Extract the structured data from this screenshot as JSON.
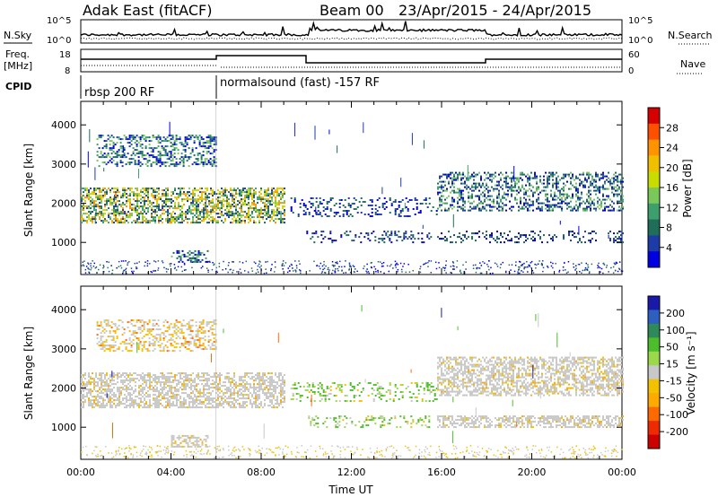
{
  "header": {
    "station": "Adak East (fitACF)",
    "beam": "Beam 00",
    "dates": "23/Apr/2015 - 24/Apr/2015"
  },
  "top_panels": {
    "nsky_label": "N.Sky",
    "nsearch_label": "N.Search",
    "nsky_ticks": [
      "10^5",
      "10^0"
    ],
    "nsearch_ticks": [
      "10^5",
      "10^0"
    ],
    "freq_label_1": "Freq.",
    "freq_label_2": "[MHz]",
    "freq_ticks": [
      "18",
      "8"
    ],
    "nave_label": "Nave",
    "nave_ticks": [
      "60",
      "0"
    ],
    "cpid_label": "CPID",
    "cpid_segments": [
      "rbsp 200 RF",
      "normalsound (fast) -157 RF"
    ]
  },
  "chart_data": [
    {
      "type": "heatmap",
      "name": "power",
      "ylabel": "Slant Range [km]",
      "xlabel": "Time UT",
      "xlim_hours": [
        0,
        24
      ],
      "ylim_km": [
        180,
        4600
      ],
      "y_ticks": [
        "1000",
        "2000",
        "3000",
        "4000"
      ],
      "x_ticks": [
        "00:00",
        "04:00",
        "08:00",
        "12:00",
        "16:00",
        "20:00",
        "00:00"
      ],
      "colorbar": {
        "label": "Power [dB]",
        "ticks": [
          "28",
          "24",
          "20",
          "16",
          "12",
          "8",
          "4"
        ],
        "colors": [
          "#d70000",
          "#ff5000",
          "#ff9400",
          "#f0c000",
          "#c8dc00",
          "#7ac85a",
          "#3d9e6e",
          "#1f6e5a",
          "#1e3ca8",
          "#0000e0"
        ]
      },
      "echo_regions": [
        {
          "t_start": 0.0,
          "t_end": 9.0,
          "range_start": 1500,
          "range_end": 2400,
          "level": "strong"
        },
        {
          "t_start": 0.7,
          "t_end": 6.0,
          "range_start": 2950,
          "range_end": 3750,
          "level": "moderate"
        },
        {
          "t_start": 4.0,
          "t_end": 5.6,
          "range_start": 500,
          "range_end": 800,
          "level": "moderate"
        },
        {
          "t_start": 9.3,
          "t_end": 15.8,
          "range_start": 1650,
          "range_end": 2150,
          "level": "weak"
        },
        {
          "t_start": 10.0,
          "t_end": 15.5,
          "range_start": 1000,
          "range_end": 1300,
          "level": "weak"
        },
        {
          "t_start": 15.8,
          "t_end": 24.0,
          "range_start": 1800,
          "range_end": 2800,
          "level": "moderate"
        },
        {
          "t_start": 15.8,
          "t_end": 24.0,
          "range_start": 1000,
          "range_end": 1300,
          "level": "weak"
        }
      ]
    },
    {
      "type": "heatmap",
      "name": "velocity",
      "ylabel": "Slant Range [km]",
      "xlabel": "Time UT",
      "xlim_hours": [
        0,
        24
      ],
      "ylim_km": [
        180,
        4600
      ],
      "y_ticks": [
        "1000",
        "2000",
        "3000",
        "4000"
      ],
      "x_ticks": [
        "00:00",
        "04:00",
        "08:00",
        "12:00",
        "16:00",
        "20:00",
        "00:00"
      ],
      "colorbar": {
        "label": "Velocity [m s⁻¹]",
        "ticks": [
          "200",
          "100",
          "50",
          "15",
          "-15",
          "-50",
          "-100",
          "-200"
        ],
        "colors": [
          "#1a1aaa",
          "#2c5fbe",
          "#2f8a5a",
          "#4ebd2c",
          "#9bd84a",
          "#c8c8c8",
          "#f2c200",
          "#ffaa00",
          "#ff6a00",
          "#ee2a00",
          "#cc0000"
        ]
      },
      "echo_regions": [
        {
          "t_start": 0.0,
          "t_end": 9.0,
          "range_start": 1500,
          "range_end": 2400,
          "level": "ground"
        },
        {
          "t_start": 0.7,
          "t_end": 6.0,
          "range_start": 2950,
          "range_end": 3750,
          "level": "mixed"
        },
        {
          "t_start": 4.0,
          "t_end": 5.6,
          "range_start": 500,
          "range_end": 800,
          "level": "ground"
        },
        {
          "t_start": 9.3,
          "t_end": 15.8,
          "range_start": 1650,
          "range_end": 2150,
          "level": "positive"
        },
        {
          "t_start": 10.0,
          "t_end": 15.5,
          "range_start": 1000,
          "range_end": 1300,
          "level": "positive"
        },
        {
          "t_start": 15.8,
          "t_end": 24.0,
          "range_start": 1800,
          "range_end": 2800,
          "level": "ground"
        },
        {
          "t_start": 15.8,
          "t_end": 24.0,
          "range_start": 1000,
          "range_end": 1300,
          "level": "ground"
        }
      ]
    }
  ]
}
